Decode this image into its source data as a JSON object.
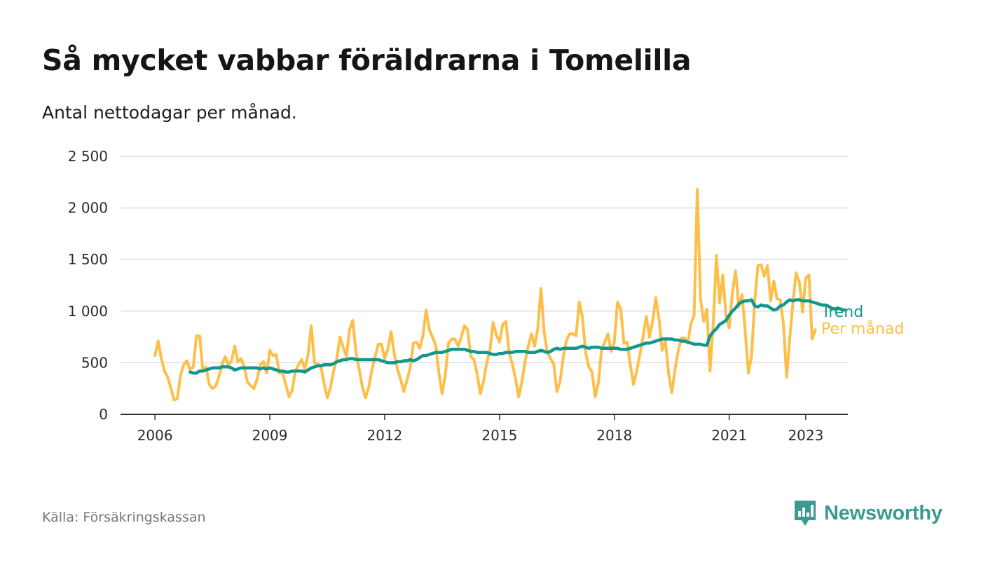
{
  "header": {
    "title": "Så mycket vabbar föräldrarna i Tomelilla",
    "subtitle": "Antal nettodagar per månad."
  },
  "footer": {
    "source": "Källa: Försäkringskassan",
    "brand": "Newsworthy",
    "brand_icon": "bar-chart-speech-bubble-icon",
    "brand_color": "#3a9a91"
  },
  "chart_data": {
    "type": "line",
    "title": "Så mycket vabbar föräldrarna i Tomelilla",
    "subtitle": "Antal nettodagar per månad.",
    "xlabel": "",
    "ylabel": "",
    "xlim": [
      2005.1,
      2024.1
    ],
    "ylim": [
      0,
      2500
    ],
    "x_ticks": [
      2006,
      2009,
      2012,
      2015,
      2018,
      2021,
      2023
    ],
    "y_ticks": [
      0,
      500,
      1000,
      1500,
      2000,
      2500
    ],
    "y_tick_labels": [
      "0",
      "500",
      "1 000",
      "1 500",
      "2 000",
      "2 500"
    ],
    "grid": "horizontal",
    "legend": "inline-right",
    "series": [
      {
        "name": "Per månad",
        "color": "#fdbf4a",
        "x_start": 2006.0,
        "x_step_months": 1,
        "values": [
          570,
          710,
          540,
          420,
          360,
          250,
          140,
          150,
          380,
          480,
          520,
          430,
          460,
          760,
          760,
          420,
          460,
          290,
          250,
          270,
          360,
          480,
          560,
          480,
          520,
          660,
          510,
          540,
          460,
          310,
          280,
          250,
          340,
          480,
          510,
          400,
          620,
          570,
          580,
          400,
          400,
          290,
          170,
          230,
          420,
          480,
          530,
          440,
          580,
          860,
          500,
          490,
          470,
          300,
          160,
          260,
          420,
          540,
          750,
          650,
          560,
          820,
          910,
          600,
          440,
          270,
          160,
          260,
          430,
          560,
          680,
          680,
          540,
          630,
          800,
          590,
          440,
          340,
          220,
          330,
          450,
          690,
          700,
          640,
          760,
          1010,
          820,
          750,
          670,
          400,
          200,
          380,
          690,
          730,
          730,
          660,
          750,
          860,
          820,
          560,
          530,
          390,
          200,
          320,
          500,
          620,
          890,
          770,
          700,
          870,
          900,
          600,
          490,
          350,
          170,
          310,
          510,
          660,
          780,
          660,
          830,
          1220,
          790,
          600,
          540,
          490,
          220,
          320,
          560,
          720,
          780,
          780,
          760,
          1090,
          940,
          600,
          460,
          410,
          170,
          310,
          630,
          700,
          780,
          610,
          700,
          1090,
          1020,
          690,
          700,
          480,
          290,
          420,
          580,
          750,
          950,
          750,
          900,
          1130,
          920,
          620,
          710,
          400,
          210,
          430,
          610,
          740,
          740,
          690,
          880,
          960,
          2180,
          1120,
          900,
          1020,
          420,
          880,
          1540,
          1080,
          1350,
          950,
          840,
          1180,
          1390,
          1040,
          1160,
          820,
          400,
          560,
          1100,
          1440,
          1450,
          1340,
          1440,
          1100,
          1290,
          1120,
          1110,
          880,
          360,
          740,
          1090,
          1370,
          1280,
          990,
          1320,
          1350,
          730,
          820
        ]
      },
      {
        "name": "Trend",
        "color": "#12978d",
        "x_start": 2006.9167,
        "x_step_months": 1,
        "values": [
          410,
          400,
          400,
          420,
          420,
          430,
          440,
          450,
          450,
          450,
          460,
          460,
          460,
          450,
          430,
          440,
          450,
          450,
          450,
          450,
          450,
          450,
          440,
          450,
          440,
          450,
          440,
          430,
          420,
          420,
          410,
          410,
          420,
          420,
          420,
          420,
          410,
          430,
          450,
          460,
          470,
          470,
          480,
          480,
          480,
          490,
          510,
          520,
          530,
          530,
          540,
          540,
          530,
          530,
          530,
          530,
          530,
          530,
          530,
          530,
          520,
          510,
          500,
          500,
          500,
          510,
          510,
          520,
          520,
          530,
          520,
          530,
          550,
          570,
          570,
          580,
          590,
          600,
          600,
          600,
          610,
          620,
          630,
          630,
          630,
          630,
          630,
          620,
          610,
          610,
          600,
          600,
          600,
          600,
          590,
          580,
          580,
          590,
          590,
          600,
          600,
          600,
          610,
          610,
          610,
          610,
          600,
          600,
          600,
          610,
          620,
          610,
          600,
          610,
          630,
          640,
          630,
          640,
          640,
          640,
          640,
          640,
          650,
          660,
          650,
          640,
          650,
          650,
          650,
          640,
          640,
          640,
          640,
          640,
          640,
          630,
          630,
          630,
          640,
          650,
          660,
          670,
          680,
          690,
          690,
          700,
          710,
          720,
          730,
          730,
          730,
          730,
          720,
          720,
          710,
          710,
          700,
          690,
          680,
          680,
          680,
          670,
          670,
          760,
          800,
          830,
          870,
          890,
          910,
          960,
          1000,
          1030,
          1070,
          1090,
          1100,
          1100,
          1110,
          1050,
          1040,
          1060,
          1050,
          1050,
          1030,
          1010,
          1020,
          1050,
          1060,
          1090,
          1110,
          1100,
          1110,
          1110,
          1100,
          1100,
          1100,
          1090,
          1080,
          1070,
          1060,
          1060,
          1050,
          1030,
          1020,
          1030,
          1020,
          1010
        ]
      }
    ]
  },
  "colors": {
    "monthly": "#fdbf4a",
    "trend": "#12978d",
    "grid": "#dddddd",
    "axis": "#333333"
  }
}
